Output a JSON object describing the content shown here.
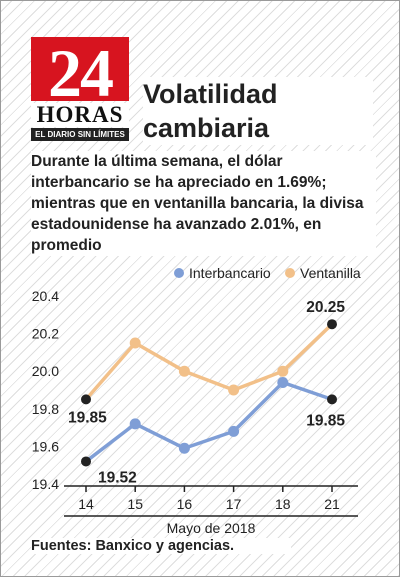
{
  "logo": {
    "number": "24",
    "name": "HORAS",
    "tagline": "EL DIARIO SIN LÍMITES"
  },
  "title": "Volatilidad cambiaria",
  "subtitle": "Durante la última semana, el dólar interbancario se ha apreciado en 1.69%; mientras que en ventanilla bancaria, la divisa estadounidense ha avanzado 2.01%, en promedio",
  "source": "Fuentes: Banxico y agencias.",
  "colors": {
    "interbancario": "#7f9ed6",
    "ventanilla": "#f2c089",
    "endpoint": "#222222"
  },
  "chart_data": {
    "type": "line",
    "categories": [
      "14",
      "15",
      "16",
      "17",
      "18",
      "21"
    ],
    "xlabel": "Mayo de 2018",
    "ylabel": "",
    "ylim": [
      19.4,
      20.4
    ],
    "yticks": [
      "19.4",
      "19.6",
      "19.8",
      "20.0",
      "20.2",
      "20.4"
    ],
    "grid": false,
    "legend_position": "top-right",
    "series": [
      {
        "name": "Interbancario",
        "values": [
          19.52,
          19.72,
          19.59,
          19.68,
          19.94,
          19.85
        ]
      },
      {
        "name": "Ventanilla",
        "values": [
          19.85,
          20.15,
          20.0,
          19.9,
          20.0,
          20.25
        ]
      }
    ],
    "data_labels": [
      {
        "series": 0,
        "index": 0,
        "text": "19.52"
      },
      {
        "series": 1,
        "index": 0,
        "text": "19.85"
      },
      {
        "series": 1,
        "index": 5,
        "text": "20.25"
      },
      {
        "series": 0,
        "index": 5,
        "text": "19.85"
      }
    ]
  }
}
